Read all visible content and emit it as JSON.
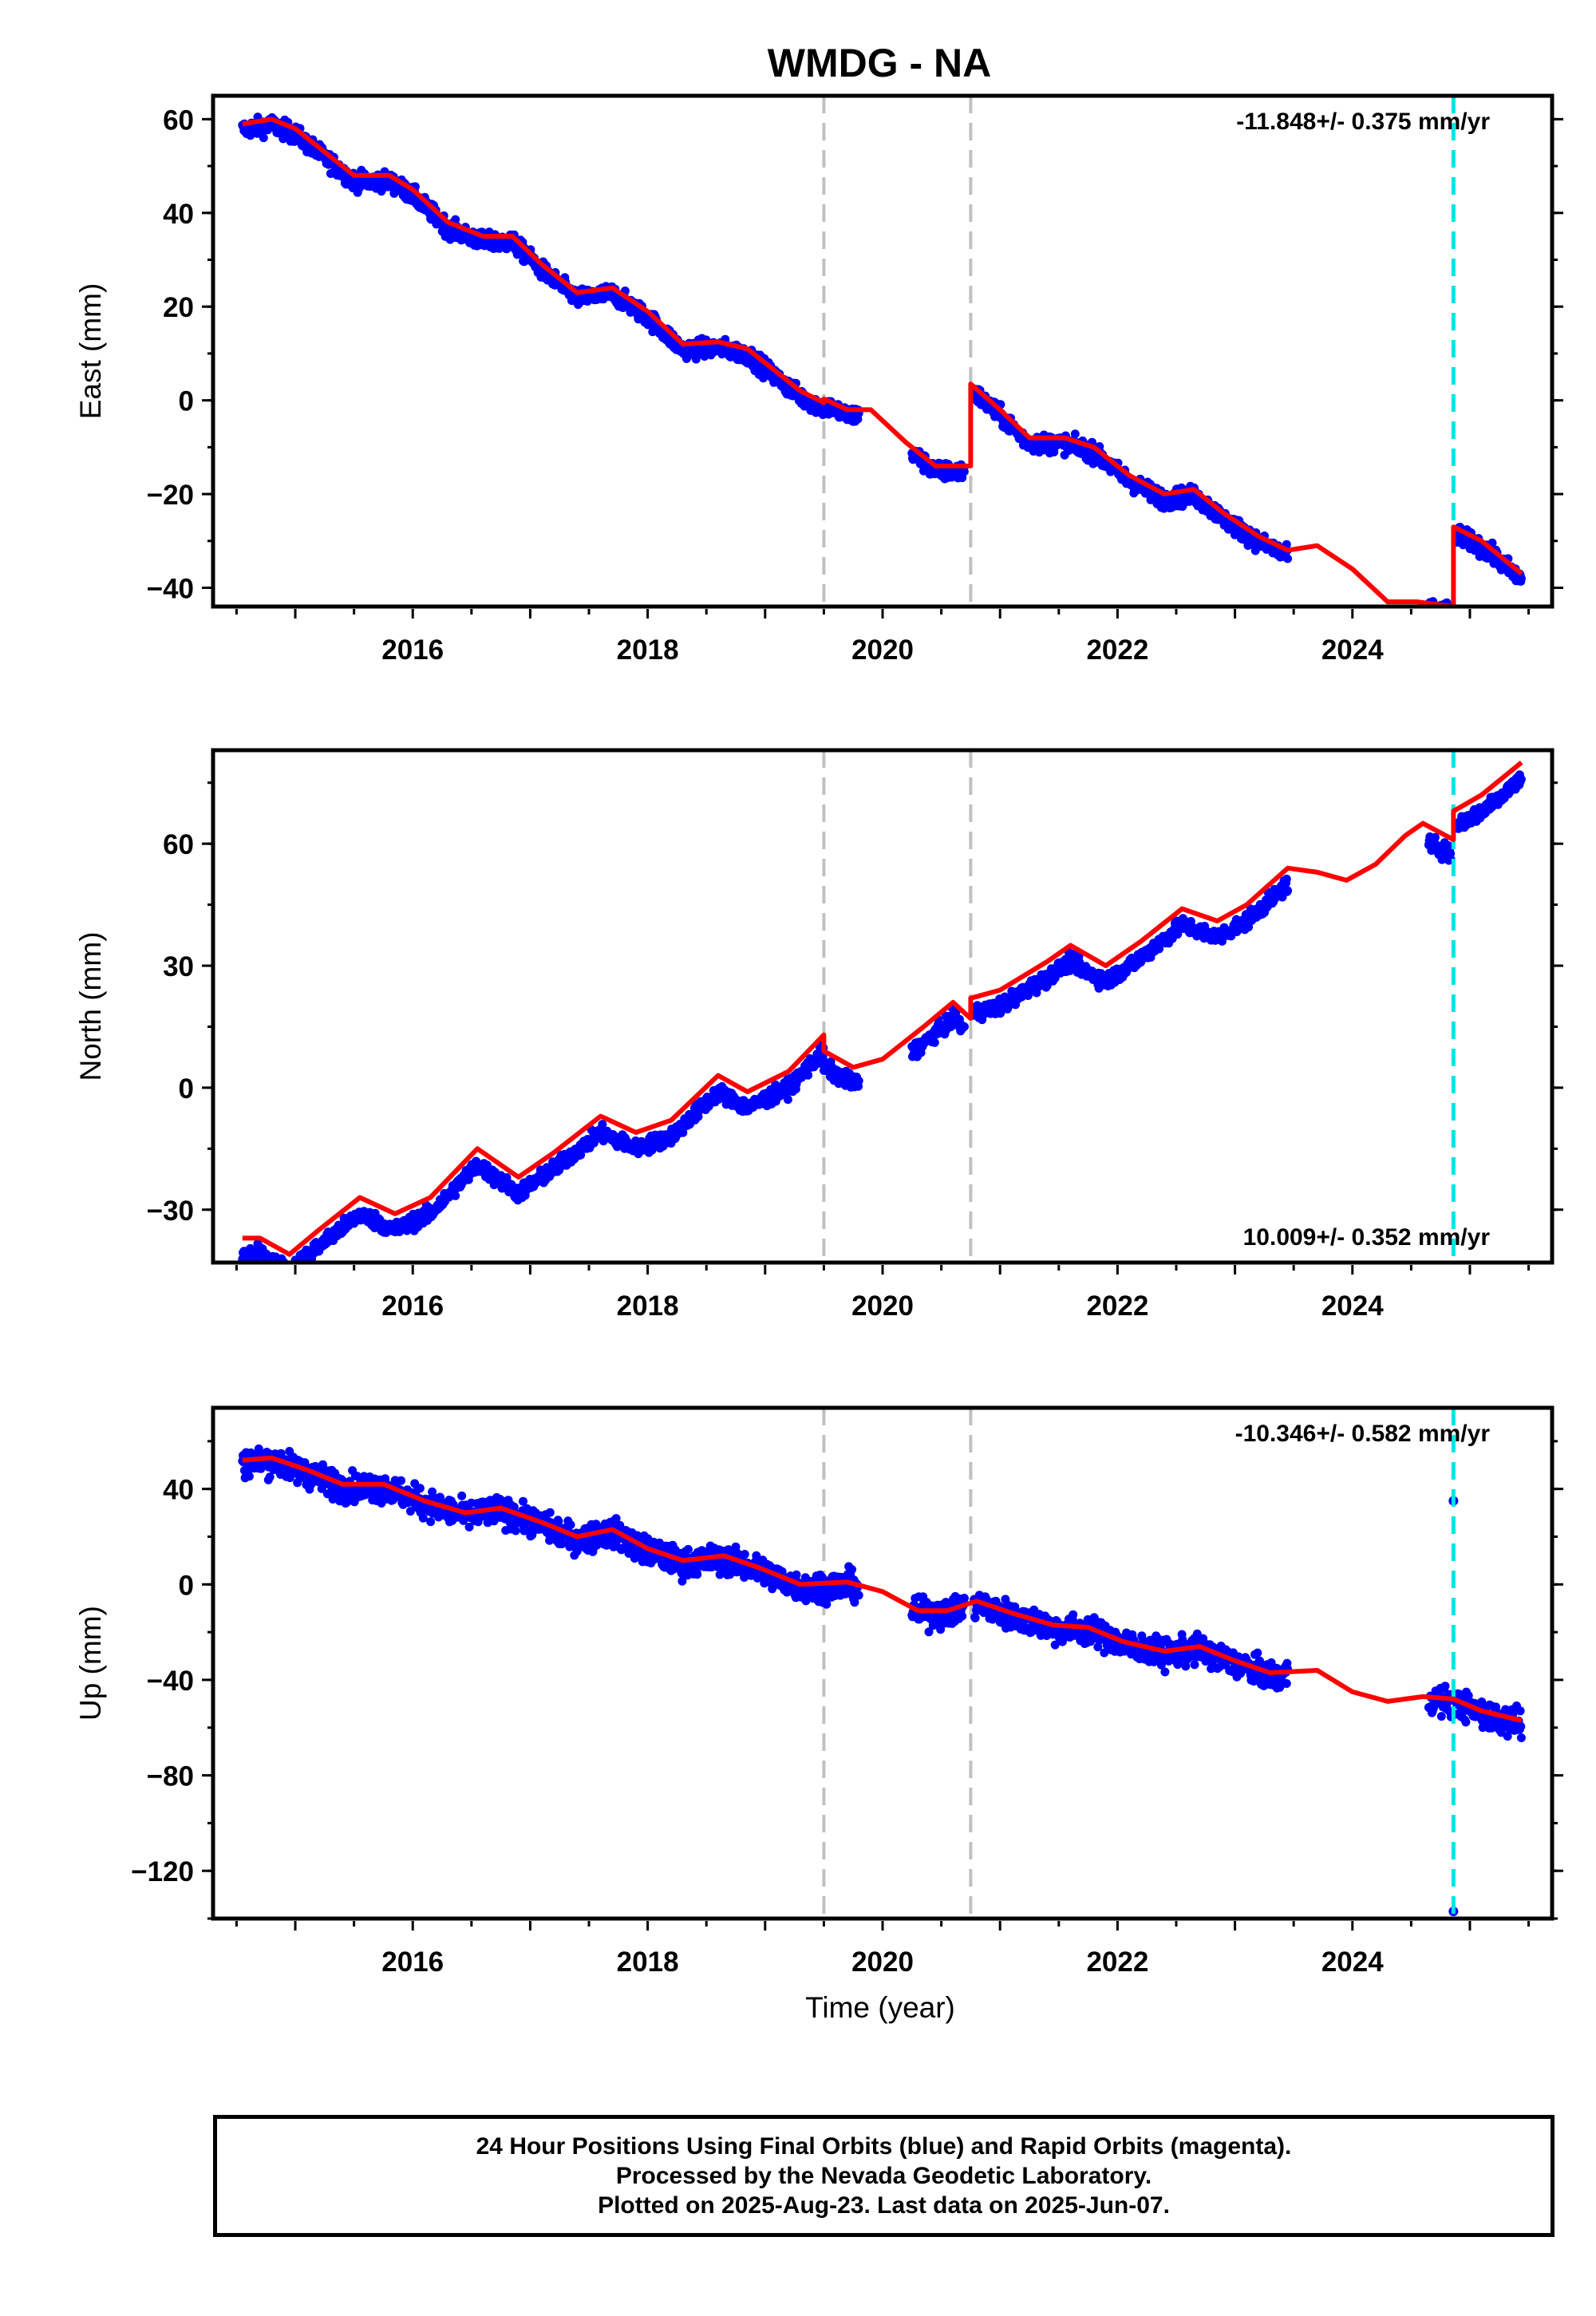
{
  "chart_data": {
    "type": "scatter",
    "title": "WMDG - NA",
    "xlabel": "Time (year)",
    "x_ticks": [
      2016,
      2018,
      2020,
      2022,
      2024
    ],
    "xlim": [
      2014.3,
      2025.7
    ],
    "equipment_changes": [
      2019.5,
      2020.75
    ],
    "earthquake_offset": 2024.86,
    "colors": {
      "data_points": "#0000ff",
      "model": "#ff0000",
      "equipment_change_line": "#c0c0c0",
      "earthquake_line": "#00e5e5"
    },
    "panels": [
      {
        "name": "east",
        "ylabel": "East (mm)",
        "ylim": [
          -44,
          65
        ],
        "y_ticks": [
          60,
          40,
          20,
          0,
          -20,
          -40
        ],
        "velocity_label": "-11.848+/- 0.375 mm/yr",
        "velocity_label_position": "top-right",
        "observed_segments": [
          [
            2014.55,
            2018.3
          ],
          [
            2018.3,
            2019.1
          ],
          [
            2019.1,
            2019.8
          ],
          [
            2020.25,
            2020.7
          ],
          [
            2020.78,
            2023.45
          ],
          [
            2024.65,
            2024.84
          ],
          [
            2024.88,
            2025.44
          ]
        ],
        "model": [
          [
            2014.55,
            59
          ],
          [
            2014.8,
            60
          ],
          [
            2015.0,
            58
          ],
          [
            2015.3,
            52
          ],
          [
            2015.5,
            48
          ],
          [
            2015.8,
            48
          ],
          [
            2016.0,
            45
          ],
          [
            2016.3,
            38
          ],
          [
            2016.6,
            35
          ],
          [
            2016.85,
            35
          ],
          [
            2017.1,
            29
          ],
          [
            2017.4,
            23
          ],
          [
            2017.7,
            24
          ],
          [
            2018.0,
            19
          ],
          [
            2018.3,
            12
          ],
          [
            2018.6,
            12.5
          ],
          [
            2018.85,
            11
          ],
          [
            2019.1,
            6
          ],
          [
            2019.3,
            2
          ],
          [
            2019.5,
            -0.5
          ],
          [
            2019.5,
            0.3
          ],
          [
            2019.7,
            -2
          ],
          [
            2019.9,
            -2
          ],
          [
            2020.2,
            -9
          ],
          [
            2020.45,
            -14
          ],
          [
            2020.75,
            -14
          ],
          [
            2020.75,
            3.5
          ],
          [
            2021.0,
            -2
          ],
          [
            2021.25,
            -8
          ],
          [
            2021.55,
            -8
          ],
          [
            2021.8,
            -10
          ],
          [
            2022.1,
            -16
          ],
          [
            2022.4,
            -20
          ],
          [
            2022.65,
            -19
          ],
          [
            2022.9,
            -24
          ],
          [
            2023.2,
            -29
          ],
          [
            2023.45,
            -32
          ],
          [
            2023.7,
            -31
          ],
          [
            2024.0,
            -36
          ],
          [
            2024.3,
            -43
          ],
          [
            2024.55,
            -43
          ],
          [
            2024.86,
            -44
          ],
          [
            2024.86,
            -27
          ],
          [
            2025.1,
            -30
          ],
          [
            2025.44,
            -37
          ]
        ]
      },
      {
        "name": "north",
        "ylabel": "North (mm)",
        "ylim": [
          -43,
          83
        ],
        "y_ticks": [
          60,
          30,
          0,
          -30
        ],
        "velocity_label": "10.009+/- 0.352 mm/yr",
        "velocity_label_position": "bottom-right",
        "observed_segments": [
          [
            2014.55,
            2018.3
          ],
          [
            2018.3,
            2019.1
          ],
          [
            2019.1,
            2019.8
          ],
          [
            2020.25,
            2020.7
          ],
          [
            2020.78,
            2023.45
          ],
          [
            2024.65,
            2024.84
          ],
          [
            2024.88,
            2025.44
          ]
        ],
        "model": [
          [
            2014.55,
            -37
          ],
          [
            2014.7,
            -37
          ],
          [
            2014.95,
            -41
          ],
          [
            2015.2,
            -35
          ],
          [
            2015.55,
            -27
          ],
          [
            2015.85,
            -31
          ],
          [
            2016.15,
            -27
          ],
          [
            2016.55,
            -15
          ],
          [
            2016.9,
            -22
          ],
          [
            2017.2,
            -16
          ],
          [
            2017.6,
            -7
          ],
          [
            2017.9,
            -11
          ],
          [
            2018.2,
            -8
          ],
          [
            2018.6,
            3
          ],
          [
            2018.85,
            -1
          ],
          [
            2019.2,
            4
          ],
          [
            2019.5,
            13
          ],
          [
            2019.5,
            9
          ],
          [
            2019.75,
            5
          ],
          [
            2020.0,
            7
          ],
          [
            2020.35,
            15
          ],
          [
            2020.6,
            21
          ],
          [
            2020.75,
            17
          ],
          [
            2020.75,
            22
          ],
          [
            2021.0,
            24
          ],
          [
            2021.4,
            31
          ],
          [
            2021.6,
            35
          ],
          [
            2021.9,
            30
          ],
          [
            2022.2,
            36
          ],
          [
            2022.55,
            44
          ],
          [
            2022.85,
            41
          ],
          [
            2023.1,
            45
          ],
          [
            2023.45,
            54
          ],
          [
            2023.7,
            53
          ],
          [
            2023.95,
            51
          ],
          [
            2024.2,
            55
          ],
          [
            2024.45,
            62
          ],
          [
            2024.6,
            65
          ],
          [
            2024.86,
            61
          ],
          [
            2024.86,
            68
          ],
          [
            2025.1,
            72
          ],
          [
            2025.44,
            80
          ]
        ]
      },
      {
        "name": "up",
        "ylabel": "Up (mm)",
        "ylim": [
          -140,
          74
        ],
        "y_ticks": [
          40,
          0,
          -40,
          -80,
          -120
        ],
        "velocity_label": "-10.346+/- 0.582 mm/yr",
        "velocity_label_position": "top-right",
        "observed_segments": [
          [
            2014.55,
            2018.3
          ],
          [
            2018.3,
            2019.1
          ],
          [
            2019.1,
            2019.8
          ],
          [
            2020.25,
            2020.7
          ],
          [
            2020.78,
            2023.45
          ],
          [
            2024.65,
            2024.84
          ],
          [
            2024.88,
            2025.44
          ]
        ],
        "outliers": [
          [
            2024.86,
            35
          ],
          [
            2024.86,
            -137
          ]
        ],
        "model": [
          [
            2014.55,
            52
          ],
          [
            2014.8,
            53
          ],
          [
            2015.1,
            48
          ],
          [
            2015.4,
            42
          ],
          [
            2015.75,
            42
          ],
          [
            2016.1,
            35
          ],
          [
            2016.45,
            30
          ],
          [
            2016.75,
            32
          ],
          [
            2017.1,
            26
          ],
          [
            2017.4,
            20
          ],
          [
            2017.7,
            23
          ],
          [
            2018.0,
            15
          ],
          [
            2018.3,
            10
          ],
          [
            2018.65,
            12
          ],
          [
            2018.95,
            7
          ],
          [
            2019.3,
            0
          ],
          [
            2019.7,
            1
          ],
          [
            2020.0,
            -3
          ],
          [
            2020.3,
            -11
          ],
          [
            2020.55,
            -11
          ],
          [
            2020.8,
            -7
          ],
          [
            2021.1,
            -12
          ],
          [
            2021.45,
            -17
          ],
          [
            2021.75,
            -18
          ],
          [
            2022.05,
            -24
          ],
          [
            2022.4,
            -28
          ],
          [
            2022.7,
            -26
          ],
          [
            2023.0,
            -32
          ],
          [
            2023.3,
            -37
          ],
          [
            2023.7,
            -36
          ],
          [
            2024.0,
            -45
          ],
          [
            2024.3,
            -49
          ],
          [
            2024.6,
            -47
          ],
          [
            2024.86,
            -48
          ],
          [
            2025.1,
            -53
          ],
          [
            2025.44,
            -57
          ]
        ]
      }
    ]
  },
  "footer": {
    "line1": "24 Hour Positions Using Final Orbits (blue) and Rapid Orbits (magenta).",
    "line2": "Processed by the Nevada Geodetic Laboratory.",
    "line3": "Plotted on 2025-Aug-23. Last data on 2025-Jun-07."
  }
}
